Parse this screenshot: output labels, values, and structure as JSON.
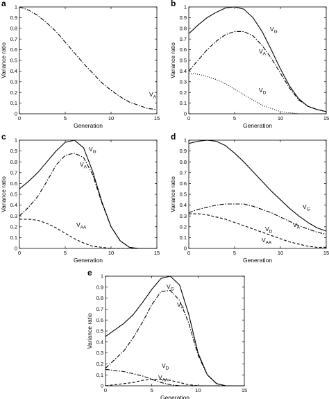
{
  "chart_data": [
    {
      "panel": "a",
      "type": "line",
      "xlabel": "Generation",
      "ylabel": "Variance ratio",
      "xlim": [
        0,
        15
      ],
      "ylim": [
        0,
        1
      ],
      "xticks": [
        "0",
        "5",
        "10",
        "15"
      ],
      "yticks": [
        "0",
        "0.1",
        "0.2",
        "0.3",
        "0.4",
        "0.5",
        "0.6",
        "0.7",
        "0.8",
        "0.9",
        "1"
      ],
      "series": [
        {
          "name": "V",
          "sub": "A",
          "style": "dashdot",
          "x": [
            0,
            1,
            2,
            3,
            4,
            5,
            6,
            7,
            8,
            9,
            10,
            11,
            12,
            13,
            14,
            15
          ],
          "y": [
            1.0,
            0.97,
            0.92,
            0.85,
            0.77,
            0.67,
            0.57,
            0.47,
            0.38,
            0.29,
            0.22,
            0.16,
            0.11,
            0.08,
            0.05,
            0.04
          ]
        }
      ]
    },
    {
      "panel": "b",
      "type": "line",
      "xlabel": "Generation",
      "ylabel": "Variance ratio",
      "xlim": [
        0,
        15
      ],
      "ylim": [
        0,
        1
      ],
      "xticks": [
        "0",
        "5",
        "10",
        "15"
      ],
      "yticks": [
        "0",
        "0.1",
        "0.2",
        "0.3",
        "0.4",
        "0.5",
        "0.6",
        "0.7",
        "0.8",
        "0.9",
        "1"
      ],
      "series": [
        {
          "name": "V",
          "sub": "G",
          "style": "solid",
          "x": [
            0,
            1,
            2,
            3,
            4,
            5,
            6,
            7,
            8,
            9,
            10,
            11,
            12,
            13,
            14,
            15
          ],
          "y": [
            0.75,
            0.83,
            0.9,
            0.95,
            0.99,
            1.0,
            0.98,
            0.9,
            0.77,
            0.6,
            0.42,
            0.26,
            0.14,
            0.07,
            0.04,
            0.02
          ]
        },
        {
          "name": "V",
          "sub": "A",
          "style": "dashdot",
          "x": [
            0,
            1,
            2,
            3,
            4,
            5,
            6,
            7,
            8,
            9,
            10,
            11,
            12,
            13,
            14,
            15
          ],
          "y": [
            0.4,
            0.5,
            0.6,
            0.68,
            0.74,
            0.77,
            0.77,
            0.73,
            0.64,
            0.52,
            0.38,
            0.24,
            0.13,
            0.07,
            0.04,
            0.02
          ]
        },
        {
          "name": "V",
          "sub": "D",
          "style": "dotted",
          "x": [
            0,
            1,
            2,
            3,
            4,
            5,
            6,
            7,
            8,
            9,
            10,
            11,
            12,
            13,
            14,
            15
          ],
          "y": [
            0.38,
            0.37,
            0.35,
            0.32,
            0.28,
            0.23,
            0.18,
            0.13,
            0.08,
            0.05,
            0.02,
            0.01,
            0.0,
            0.0,
            0.0,
            0.0
          ]
        }
      ]
    },
    {
      "panel": "c",
      "type": "line",
      "xlabel": "Generation",
      "ylabel": "Variance ratio",
      "xlim": [
        0,
        15
      ],
      "ylim": [
        0,
        1
      ],
      "xticks": [
        "0",
        "5",
        "10",
        "15"
      ],
      "yticks": [
        "0",
        "0.1",
        "0.2",
        "0.3",
        "0.4",
        "0.5",
        "0.6",
        "0.7",
        "0.8",
        "0.9",
        "1"
      ],
      "series": [
        {
          "name": "V",
          "sub": "G",
          "style": "solid",
          "x": [
            0,
            1,
            2,
            3,
            4,
            5,
            6,
            7,
            8,
            9,
            10,
            11,
            12,
            13,
            14,
            15
          ],
          "y": [
            0.55,
            0.62,
            0.7,
            0.8,
            0.9,
            0.98,
            1.0,
            0.93,
            0.71,
            0.43,
            0.2,
            0.07,
            0.01,
            0.0,
            0.0,
            0.0
          ]
        },
        {
          "name": "V",
          "sub": "A",
          "style": "dashdot",
          "x": [
            0,
            1,
            2,
            3,
            4,
            5,
            6,
            7,
            8,
            9,
            10,
            11,
            12,
            13,
            14,
            15
          ],
          "y": [
            0.3,
            0.38,
            0.48,
            0.62,
            0.77,
            0.86,
            0.88,
            0.84,
            0.68,
            0.42,
            0.2,
            0.07,
            0.01,
            0.0,
            0.0,
            0.0
          ]
        },
        {
          "name": "V",
          "sub": "AA",
          "style": "dashed",
          "x": [
            0,
            1,
            2,
            3,
            4,
            5,
            6,
            7,
            8,
            9,
            10,
            11,
            12,
            13,
            14,
            15
          ],
          "y": [
            0.27,
            0.27,
            0.26,
            0.23,
            0.19,
            0.14,
            0.09,
            0.05,
            0.02,
            0.01,
            0.0,
            0.0,
            0.0,
            0.0,
            0.0,
            0.0
          ]
        }
      ]
    },
    {
      "panel": "d",
      "type": "line",
      "xlabel": "Generation",
      "ylabel": "Variance ratio",
      "xlim": [
        0,
        15
      ],
      "ylim": [
        0,
        1
      ],
      "xticks": [
        "0",
        "5",
        "10",
        "15"
      ],
      "yticks": [
        "0",
        "0.1",
        "0.2",
        "0.3",
        "0.4",
        "0.5",
        "0.6",
        "0.7",
        "0.8",
        "0.9",
        "1"
      ],
      "series": [
        {
          "name": "V",
          "sub": "G",
          "style": "solid",
          "x": [
            0,
            1,
            2,
            3,
            4,
            5,
            6,
            7,
            8,
            9,
            10,
            11,
            12,
            13,
            14,
            15
          ],
          "y": [
            0.97,
            0.99,
            1.0,
            0.99,
            0.95,
            0.88,
            0.8,
            0.71,
            0.62,
            0.53,
            0.45,
            0.37,
            0.3,
            0.24,
            0.19,
            0.16
          ]
        },
        {
          "name": "V",
          "sub": "A",
          "style": "dashdot",
          "x": [
            0,
            1,
            2,
            3,
            4,
            5,
            6,
            7,
            8,
            9,
            10,
            11,
            12,
            13,
            14,
            15
          ],
          "y": [
            0.33,
            0.36,
            0.38,
            0.4,
            0.41,
            0.41,
            0.41,
            0.39,
            0.36,
            0.33,
            0.29,
            0.25,
            0.21,
            0.18,
            0.15,
            0.13
          ]
        },
        {
          "name": "V",
          "sub": "D",
          "style": "dashed",
          "x": [
            0,
            1,
            2,
            3,
            4,
            5,
            6,
            7,
            8,
            9,
            10,
            11,
            12,
            13,
            14,
            15
          ],
          "y": [
            0.32,
            0.32,
            0.31,
            0.29,
            0.27,
            0.24,
            0.21,
            0.18,
            0.15,
            0.12,
            0.09,
            0.06,
            0.04,
            0.02,
            0.01,
            0.01
          ]
        }
      ],
      "extra_labels": [
        {
          "name": "V",
          "sub": "AA"
        }
      ]
    },
    {
      "panel": "e",
      "type": "line",
      "xlabel": "Generation",
      "ylabel": "Variance ratio",
      "xlim": [
        0,
        15
      ],
      "ylim": [
        0,
        1
      ],
      "xticks": [
        "0",
        "5",
        "10",
        "15"
      ],
      "yticks": [
        "0",
        "0.1",
        "0.2",
        "0.3",
        "0.4",
        "0.5",
        "0.6",
        "0.7",
        "0.8",
        "0.9",
        "1"
      ],
      "series": [
        {
          "name": "V",
          "sub": "G",
          "style": "solid",
          "x": [
            0,
            1,
            2,
            3,
            4,
            5,
            6,
            7,
            8,
            9,
            10,
            11,
            12,
            13,
            14,
            15
          ],
          "y": [
            0.45,
            0.51,
            0.57,
            0.65,
            0.76,
            0.88,
            0.98,
            1.0,
            0.92,
            0.65,
            0.3,
            0.1,
            0.02,
            0.0,
            0.0,
            0.0
          ]
        },
        {
          "name": "V",
          "sub": "A",
          "style": "dashdot",
          "x": [
            0,
            1,
            2,
            3,
            4,
            5,
            6,
            7,
            8,
            9,
            10,
            11,
            12,
            13,
            14,
            15
          ],
          "y": [
            0.16,
            0.24,
            0.32,
            0.44,
            0.58,
            0.74,
            0.86,
            0.87,
            0.78,
            0.57,
            0.28,
            0.1,
            0.02,
            0.0,
            0.0,
            0.0
          ]
        },
        {
          "name": "V",
          "sub": "D",
          "style": "dashdot",
          "x": [
            0,
            1,
            2,
            3,
            4,
            5,
            6,
            7,
            8,
            9,
            10,
            11,
            12,
            13,
            14,
            15
          ],
          "y": [
            0.15,
            0.14,
            0.13,
            0.11,
            0.09,
            0.06,
            0.03,
            0.01,
            0.0,
            0.0,
            0.0,
            0.0,
            0.0,
            0.0,
            0.0,
            0.0
          ]
        },
        {
          "name": "V",
          "sub": "AA",
          "style": "dashed",
          "x": [
            0,
            1,
            2,
            3,
            4,
            5,
            6,
            7,
            8,
            9,
            10,
            11,
            12,
            13,
            14,
            15
          ],
          "y": [
            0.0,
            0.01,
            0.02,
            0.03,
            0.05,
            0.06,
            0.06,
            0.05,
            0.03,
            0.01,
            0.0,
            0.0,
            0.0,
            0.0,
            0.0,
            0.0
          ]
        }
      ]
    }
  ]
}
